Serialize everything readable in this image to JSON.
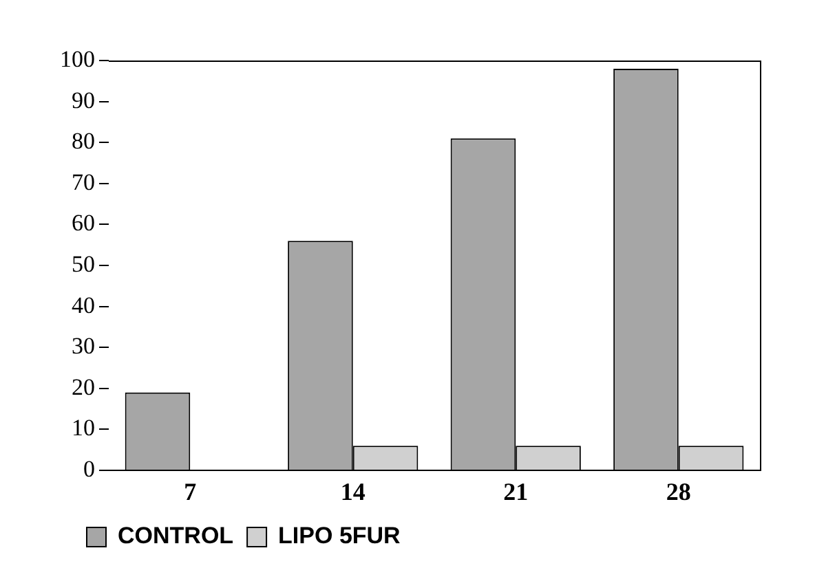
{
  "chart_data": {
    "type": "bar",
    "categories": [
      "7",
      "14",
      "21",
      "28"
    ],
    "series": [
      {
        "name": "CONTROL",
        "color": "#a6a6a6",
        "values": [
          19,
          56,
          81,
          98
        ]
      },
      {
        "name": "LIPO 5FUR",
        "color": "#d0d0d0",
        "values": [
          0,
          6,
          6,
          6
        ]
      }
    ],
    "ylim": [
      0,
      100
    ],
    "yticks": [
      0,
      10,
      20,
      30,
      40,
      50,
      60,
      70,
      80,
      90,
      100
    ],
    "legend": "bottom left"
  }
}
